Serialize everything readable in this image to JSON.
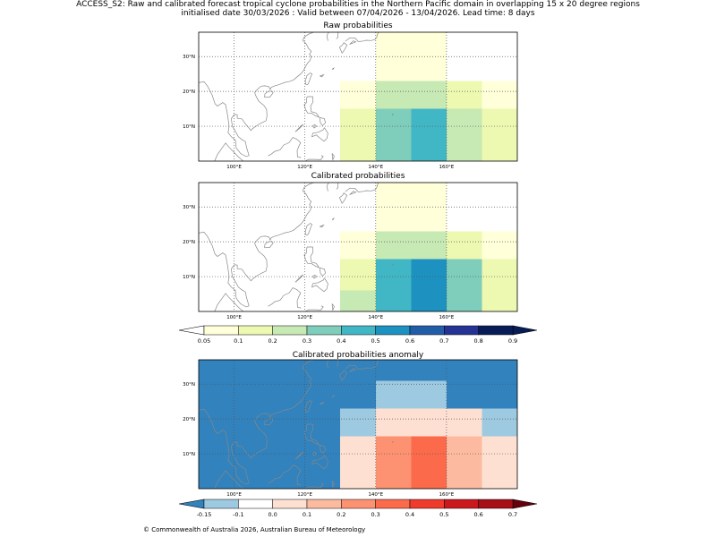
{
  "header": {
    "line1": "ACCESS_S2: Raw and calibrated forecast tropical cyclone probabilities in the Northern Pacific domain in overlapping 15 x 20 degree regions",
    "line2": "initialised date 30/03/2026 :  Valid between 07/04/2026 - 13/04/2026. Lead time: 8 days"
  },
  "footer": "© Commonwealth of Australia 2026, Australian Bureau of Meteorology",
  "colors": {
    "prob": [
      "#ffffd9",
      "#edf8b1",
      "#c7e9b4",
      "#7fcdbb",
      "#41b6c4",
      "#1d91c0",
      "#225ea8",
      "#253494",
      "#081d58"
    ],
    "anom": [
      "#3182bd",
      "#9ecae1",
      "#ffffff",
      "#fee0d2",
      "#fcbba1",
      "#fc9272",
      "#fb6a4a",
      "#ef3b2c",
      "#cb181d",
      "#a50f15",
      "#67000d"
    ],
    "land": "#888888",
    "grid": "#555555"
  },
  "chart_data": [
    {
      "type": "heatmap",
      "title": "Raw probabilities",
      "x_extent_lon": [
        90,
        180
      ],
      "y_extent_lat": [
        0,
        37
      ],
      "xticks": [
        "100°E",
        "120°E",
        "140°E",
        "160°E"
      ],
      "xtick_values": [
        100,
        120,
        140,
        160
      ],
      "yticks": [
        "10°N",
        "20°N",
        "30°N"
      ],
      "ytick_values": [
        10,
        20,
        30
      ],
      "cells": [
        {
          "lon": [
            140,
            160
          ],
          "lat": [
            15,
            37
          ],
          "value": 0.07
        },
        {
          "lon": [
            130,
            140
          ],
          "lat": [
            15,
            23
          ],
          "value": 0.07
        },
        {
          "lon": [
            170,
            180
          ],
          "lat": [
            15,
            23
          ],
          "value": 0.07
        },
        {
          "lon": [
            160,
            170
          ],
          "lat": [
            15,
            23
          ],
          "value": 0.15
        },
        {
          "lon": [
            140,
            160
          ],
          "lat": [
            15,
            23
          ],
          "value": 0.25
        },
        {
          "lon": [
            130,
            140
          ],
          "lat": [
            0,
            15
          ],
          "value": 0.15
        },
        {
          "lon": [
            170,
            180
          ],
          "lat": [
            0,
            15
          ],
          "value": 0.15
        },
        {
          "lon": [
            160,
            170
          ],
          "lat": [
            0,
            15
          ],
          "value": 0.25
        },
        {
          "lon": [
            140,
            150
          ],
          "lat": [
            0,
            15
          ],
          "value": 0.35
        },
        {
          "lon": [
            150,
            160
          ],
          "lat": [
            0,
            15
          ],
          "value": 0.45
        }
      ]
    },
    {
      "type": "heatmap",
      "title": "Calibrated probabilities",
      "x_extent_lon": [
        90,
        180
      ],
      "y_extent_lat": [
        0,
        37
      ],
      "xticks": [
        "100°E",
        "120°E",
        "140°E",
        "160°E"
      ],
      "xtick_values": [
        100,
        120,
        140,
        160
      ],
      "yticks": [
        "10°N",
        "20°N",
        "30°N"
      ],
      "ytick_values": [
        10,
        20,
        30
      ],
      "cells": [
        {
          "lon": [
            140,
            160
          ],
          "lat": [
            15,
            37
          ],
          "value": 0.07
        },
        {
          "lon": [
            130,
            140
          ],
          "lat": [
            15,
            23
          ],
          "value": 0.07
        },
        {
          "lon": [
            170,
            180
          ],
          "lat": [
            15,
            23
          ],
          "value": 0.07
        },
        {
          "lon": [
            160,
            170
          ],
          "lat": [
            15,
            23
          ],
          "value": 0.15
        },
        {
          "lon": [
            140,
            160
          ],
          "lat": [
            15,
            23
          ],
          "value": 0.25
        },
        {
          "lon": [
            130,
            140
          ],
          "lat": [
            6,
            15
          ],
          "value": 0.15
        },
        {
          "lon": [
            130,
            140
          ],
          "lat": [
            0,
            6
          ],
          "value": 0.25
        },
        {
          "lon": [
            170,
            180
          ],
          "lat": [
            0,
            15
          ],
          "value": 0.15
        },
        {
          "lon": [
            160,
            170
          ],
          "lat": [
            0,
            15
          ],
          "value": 0.35
        },
        {
          "lon": [
            140,
            150
          ],
          "lat": [
            0,
            15
          ],
          "value": 0.45
        },
        {
          "lon": [
            150,
            160
          ],
          "lat": [
            0,
            15
          ],
          "value": 0.55
        }
      ]
    },
    {
      "type": "colorbar",
      "name": "probability",
      "boundaries": [
        "0.05",
        "0.1",
        "0.2",
        "0.3",
        "0.4",
        "0.5",
        "0.6",
        "0.7",
        "0.8",
        "0.9"
      ],
      "extend": "both"
    },
    {
      "type": "heatmap",
      "title": "Calibrated probabilities anomaly",
      "x_extent_lon": [
        90,
        180
      ],
      "y_extent_lat": [
        0,
        37
      ],
      "xticks": [
        "100°E",
        "120°E",
        "140°E",
        "160°E"
      ],
      "xtick_values": [
        100,
        120,
        140,
        160
      ],
      "yticks": [
        "10°N",
        "20°N",
        "30°N"
      ],
      "ytick_values": [
        10,
        20,
        30
      ],
      "background_value": -0.2,
      "cells": [
        {
          "lon": [
            140,
            160
          ],
          "lat": [
            23,
            31
          ],
          "value": -0.12
        },
        {
          "lon": [
            130,
            140
          ],
          "lat": [
            15,
            23
          ],
          "value": -0.12
        },
        {
          "lon": [
            170,
            180
          ],
          "lat": [
            15,
            23
          ],
          "value": -0.12
        },
        {
          "lon": [
            160,
            170
          ],
          "lat": [
            15,
            23
          ],
          "value": 0.02
        },
        {
          "lon": [
            140,
            160
          ],
          "lat": [
            15,
            23
          ],
          "value": 0.05
        },
        {
          "lon": [
            130,
            140
          ],
          "lat": [
            6,
            15
          ],
          "value": 0.02
        },
        {
          "lon": [
            130,
            140
          ],
          "lat": [
            0,
            6
          ],
          "value": 0.05
        },
        {
          "lon": [
            170,
            180
          ],
          "lat": [
            0,
            15
          ],
          "value": 0.02
        },
        {
          "lon": [
            160,
            170
          ],
          "lat": [
            0,
            15
          ],
          "value": 0.15
        },
        {
          "lon": [
            140,
            150
          ],
          "lat": [
            0,
            15
          ],
          "value": 0.25
        },
        {
          "lon": [
            150,
            160
          ],
          "lat": [
            0,
            15
          ],
          "value": 0.35
        }
      ]
    },
    {
      "type": "colorbar",
      "name": "anomaly",
      "boundaries": [
        "-0.15",
        "-0.1",
        "0.0",
        "0.1",
        "0.2",
        "0.3",
        "0.4",
        "0.5",
        "0.6",
        "0.7"
      ],
      "extend": "both"
    }
  ]
}
